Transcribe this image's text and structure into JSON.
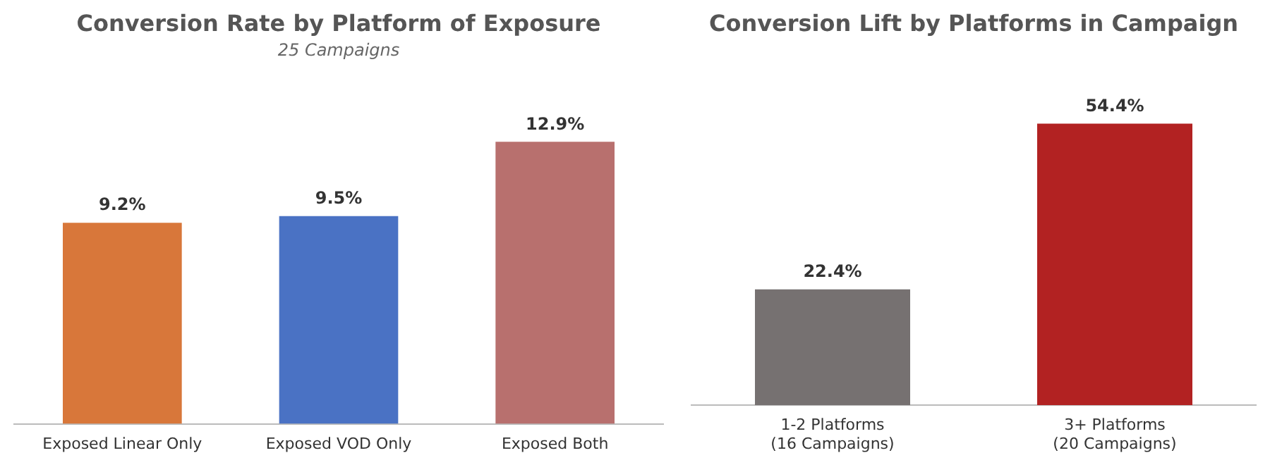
{
  "chart_data": [
    {
      "type": "bar",
      "title": "Conversion Rate by Platform of Exposure",
      "subtitle": "25 Campaigns",
      "categories": [
        "Exposed Linear Only",
        "Exposed VOD Only",
        "Exposed Both"
      ],
      "values": [
        9.2,
        9.5,
        12.9
      ],
      "colors": [
        "#d8773a",
        "#4a72c4",
        "#b8706e"
      ],
      "value_labels": [
        "9.2%",
        "9.5%",
        "12.9%"
      ],
      "grid": false,
      "legend": false,
      "tick_labels": "x"
    },
    {
      "type": "bar",
      "title": "Conversion Lift by Platforms in Campaign",
      "categories": [
        "1-2 Platforms\n(16 Campaigns)",
        "3+ Platforms\n(20 Campaigns)"
      ],
      "values": [
        22.4,
        54.4
      ],
      "colors": [
        "#767171",
        "#b22222"
      ],
      "value_labels": [
        "22.4%",
        "54.4%"
      ],
      "grid": false,
      "legend": false,
      "tick_labels": "x"
    }
  ]
}
